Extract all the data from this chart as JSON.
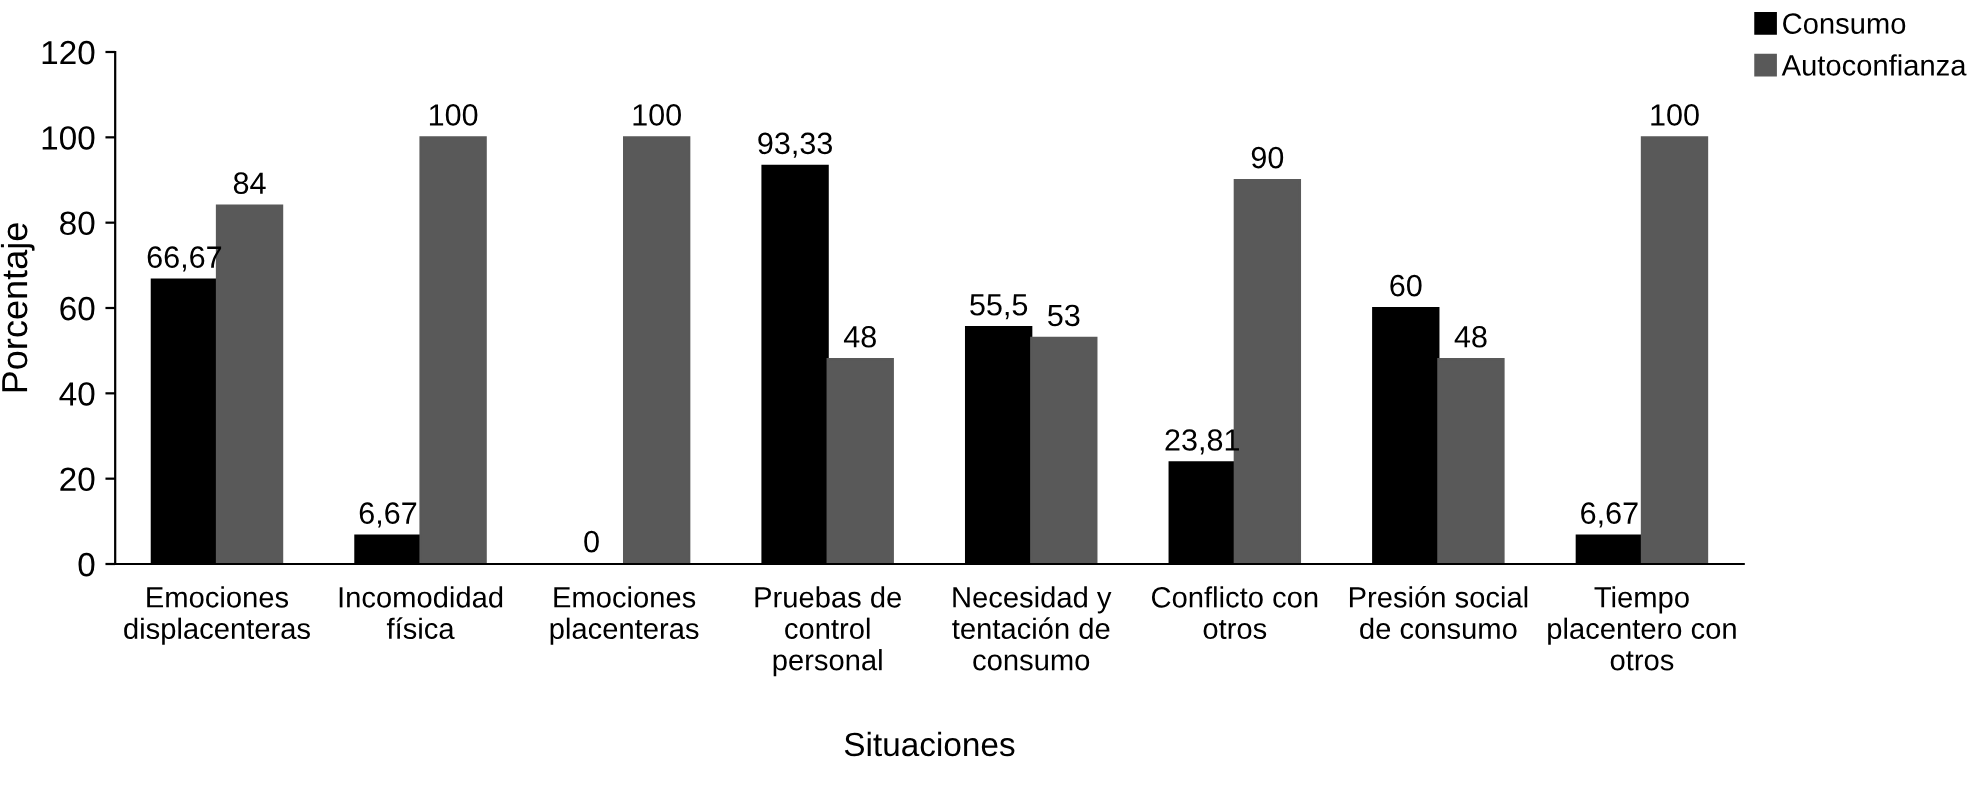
{
  "chart_data": {
    "type": "bar",
    "xlabel": "Situaciones",
    "ylabel": "Porcentaje",
    "categories": [
      "Emociones\ndisplacenteras",
      "Incomodidad\nfísica",
      "Emociones\nplacenteras",
      "Pruebas de\ncontrol\npersonal",
      "Necesidad y\ntentación de\nconsumo",
      "Conflicto con\notros",
      "Presión social\nde consumo",
      "Tiempo\nplacentero con\notros"
    ],
    "series": [
      {
        "name": "Consumo",
        "color": "#000000",
        "values": [
          66.67,
          6.67,
          0,
          93.33,
          55.5,
          23.81,
          60,
          6.67
        ],
        "value_labels": [
          "66,67",
          "6,67",
          "0",
          "93,33",
          "55,5",
          "23,81",
          "60",
          "6,67"
        ]
      },
      {
        "name": "Autoconfianza",
        "color": "#595959",
        "values": [
          84,
          100,
          100,
          48,
          53,
          90,
          48,
          100
        ],
        "value_labels": [
          "84",
          "100",
          "100",
          "48",
          "53",
          "90",
          "48",
          "100"
        ]
      }
    ],
    "ylim": [
      0,
      120
    ],
    "yticks": [
      0,
      20,
      40,
      60,
      80,
      100,
      120
    ],
    "grid": false,
    "legend": "top right"
  }
}
